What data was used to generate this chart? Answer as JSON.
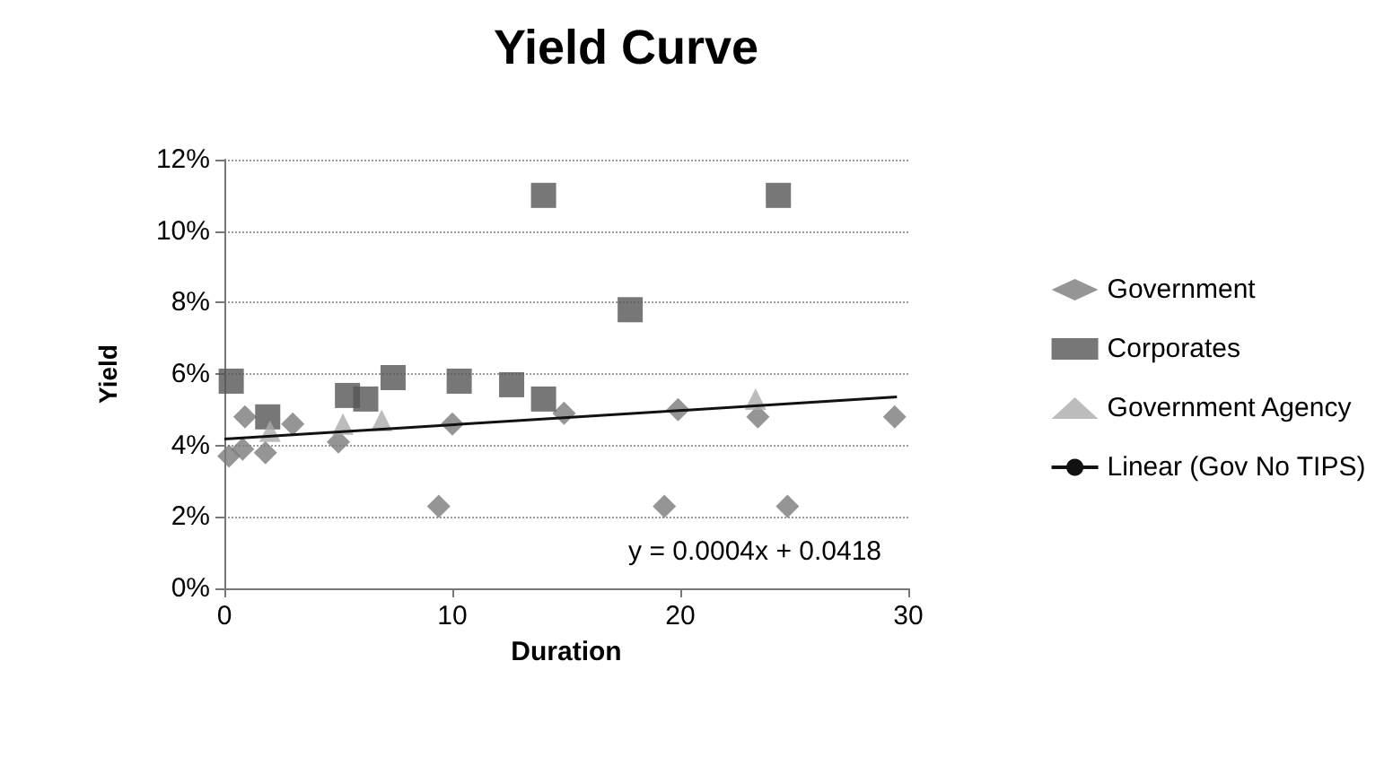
{
  "chart_data": {
    "type": "scatter",
    "title": "Yield Curve",
    "xlabel": "Duration",
    "ylabel": "Yield",
    "xlim": [
      0,
      30
    ],
    "xticks": [
      0,
      10,
      20,
      30
    ],
    "ylim": [
      0,
      12
    ],
    "yticks": [
      {
        "value": 0,
        "label": "0%"
      },
      {
        "value": 2,
        "label": "2%"
      },
      {
        "value": 4,
        "label": "4%"
      },
      {
        "value": 6,
        "label": "6%"
      },
      {
        "value": 8,
        "label": "8%"
      },
      {
        "value": 10,
        "label": "10%"
      },
      {
        "value": 12,
        "label": "12%"
      }
    ],
    "grid": "y",
    "legend": "right",
    "annotations": [
      "y = 0.0004x + 0.0418"
    ],
    "series": [
      {
        "name": "Government",
        "color": "#7a7a7a",
        "marker": "diamond",
        "x": [
          0.2,
          0.8,
          0.9,
          1.8,
          3.0,
          5.0,
          9.4,
          10.0,
          14.9,
          19.3,
          19.9,
          23.4,
          24.7,
          29.4
        ],
        "values": [
          3.7,
          3.9,
          4.8,
          3.8,
          4.6,
          4.1,
          2.3,
          4.6,
          4.9,
          2.3,
          5.0,
          4.8,
          2.3,
          4.8
        ]
      },
      {
        "name": "Corporates",
        "color": "#555555",
        "marker": "square",
        "x": [
          0.3,
          1.9,
          5.4,
          6.2,
          7.4,
          10.3,
          12.6,
          14.0,
          14.0,
          17.8,
          24.3
        ],
        "values": [
          5.8,
          4.8,
          5.4,
          5.3,
          5.9,
          5.8,
          5.7,
          11.0,
          5.3,
          7.8,
          11.0
        ]
      },
      {
        "name": "Government Agency",
        "color": "#ababab",
        "marker": "triangle",
        "x": [
          2.0,
          5.2,
          6.9,
          23.3
        ],
        "values": [
          4.4,
          4.6,
          4.7,
          5.3
        ]
      },
      {
        "name": "Linear (Gov No TIPS)",
        "type": "line",
        "color": "#111111",
        "marker": "none",
        "x": [
          0,
          29.5
        ],
        "values": [
          4.18,
          5.36
        ]
      }
    ]
  }
}
